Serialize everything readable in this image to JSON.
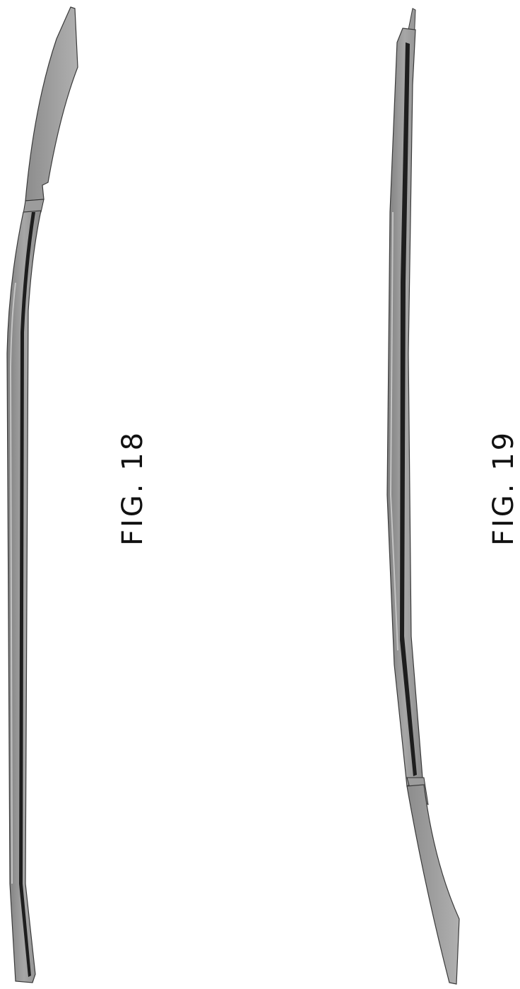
{
  "figures": [
    {
      "id": "fig-18",
      "label": "FIG. 18"
    },
    {
      "id": "fig-19",
      "label": "FIG. 19"
    }
  ],
  "colors": {
    "background": "#ffffff",
    "part_fill": "#8f8f8f",
    "part_light": "#a9a9a9",
    "part_edge": "#3a3a3a",
    "groove_dark": "#1e1e1e"
  }
}
